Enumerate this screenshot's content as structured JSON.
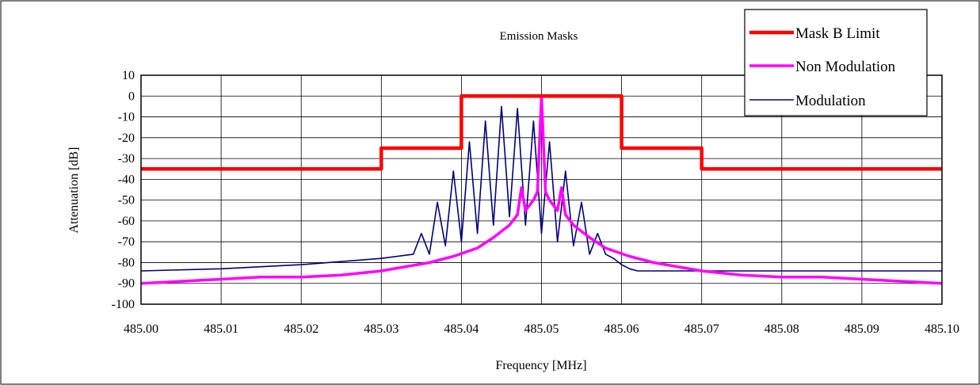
{
  "chart_data": {
    "type": "line",
    "title": "Emission Masks",
    "xlabel": "Frequency [MHz]",
    "ylabel": "Attenuation [dB]",
    "xlim": [
      485.0,
      485.1
    ],
    "ylim": [
      -100,
      10
    ],
    "x_ticks": [
      "485.00",
      "485.01",
      "485.02",
      "485.03",
      "485.04",
      "485.05",
      "485.06",
      "485.07",
      "485.08",
      "485.09",
      "485.10"
    ],
    "y_ticks": [
      "10",
      "0",
      "-10",
      "-20",
      "-30",
      "-40",
      "-50",
      "-60",
      "-70",
      "-80",
      "-90",
      "-100"
    ],
    "grid": true,
    "legend_position": "top-right",
    "series": [
      {
        "name": "Mask B Limit",
        "color": "#ff0000",
        "x": [
          485.0,
          485.03,
          485.03,
          485.04,
          485.04,
          485.06,
          485.06,
          485.07,
          485.07,
          485.1
        ],
        "y": [
          -35,
          -35,
          -25,
          -25,
          0,
          0,
          -25,
          -25,
          -35,
          -35
        ]
      },
      {
        "name": "Non Modulation",
        "color": "#ff00ff",
        "x": [
          485.0,
          485.005,
          485.01,
          485.015,
          485.02,
          485.025,
          485.03,
          485.033,
          485.036,
          485.039,
          485.042,
          485.044,
          485.046,
          485.047,
          485.0475,
          485.048,
          485.049,
          485.0495,
          485.05,
          485.0505,
          485.051,
          485.052,
          485.0525,
          485.053,
          485.054,
          485.056,
          485.058,
          485.061,
          485.064,
          485.067,
          485.07,
          485.075,
          485.08,
          485.085,
          485.09,
          485.095,
          485.1
        ],
        "y": [
          -90,
          -89,
          -88,
          -87,
          -87,
          -86,
          -84,
          -82,
          -80,
          -77,
          -73,
          -68,
          -62,
          -57,
          -44,
          -55,
          -50,
          -46,
          0,
          -46,
          -50,
          -55,
          -44,
          -57,
          -62,
          -68,
          -73,
          -77,
          -80,
          -82,
          -84,
          -86,
          -87,
          -87,
          -88,
          -89,
          -90
        ]
      },
      {
        "name": "Modulation",
        "color": "#000080",
        "x": [
          485.0,
          485.01,
          485.02,
          485.03,
          485.034,
          485.035,
          485.036,
          485.037,
          485.038,
          485.039,
          485.04,
          485.041,
          485.042,
          485.043,
          485.044,
          485.045,
          485.046,
          485.047,
          485.048,
          485.049,
          485.05,
          485.051,
          485.052,
          485.053,
          485.054,
          485.055,
          485.056,
          485.057,
          485.058,
          485.059,
          485.06,
          485.061,
          485.062,
          485.063,
          485.064,
          485.065,
          485.066,
          485.07,
          485.08,
          485.09,
          485.1
        ],
        "y": [
          -84,
          -83,
          -81,
          -78,
          -76,
          -66,
          -76,
          -51,
          -72,
          -36,
          -70,
          -22,
          -66,
          -12,
          -62,
          -5,
          -58,
          -6,
          -62,
          -12,
          -66,
          -22,
          -70,
          -36,
          -72,
          -51,
          -76,
          -66,
          -76,
          -78,
          -81,
          -83,
          -84,
          -84,
          -84,
          -84,
          -84,
          -84,
          -84,
          -84,
          -84
        ]
      }
    ]
  }
}
